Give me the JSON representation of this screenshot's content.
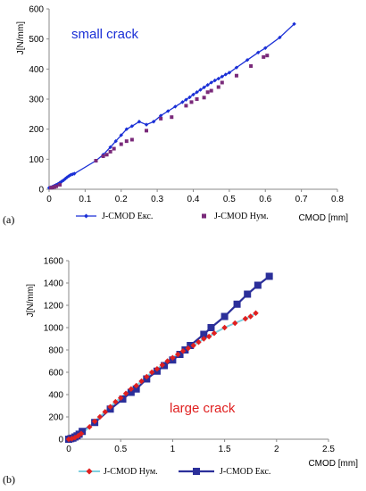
{
  "colors": {
    "exp_a": "#1a2fd6",
    "num_a": "#7a2a7a",
    "num_b_line": "#7fcfe0",
    "num_b_marker": "#e02020",
    "exp_b": "#2b2f9a",
    "annot_a": "#1a2fd6",
    "annot_b": "#e02020"
  },
  "chart_data": [
    {
      "type": "scatter",
      "panel_label": "(a)",
      "title": "",
      "annotation": "small crack",
      "xlabel": "CMOD [mm]",
      "ylabel": "J[N/mm]",
      "xlim": [
        0,
        0.8
      ],
      "ylim": [
        0,
        600
      ],
      "xticks": [
        0,
        0.1,
        0.2,
        0.3,
        0.4,
        0.5,
        0.6,
        0.7,
        0.8
      ],
      "yticks": [
        0,
        100,
        200,
        300,
        400,
        500,
        600
      ],
      "legend": [
        "J-CMOD Екс.",
        "J-CMOD Нум."
      ],
      "series": [
        {
          "name": "J-CMOD Екс.",
          "marker": "diamond",
          "x": [
            0,
            0.005,
            0.01,
            0.015,
            0.02,
            0.025,
            0.03,
            0.035,
            0.04,
            0.045,
            0.05,
            0.055,
            0.06,
            0.065,
            0.07,
            0.13,
            0.15,
            0.17,
            0.185,
            0.2,
            0.215,
            0.23,
            0.25,
            0.27,
            0.29,
            0.31,
            0.33,
            0.35,
            0.37,
            0.38,
            0.39,
            0.4,
            0.41,
            0.42,
            0.43,
            0.44,
            0.45,
            0.46,
            0.47,
            0.48,
            0.49,
            0.5,
            0.52,
            0.55,
            0.58,
            0.6,
            0.64,
            0.68
          ],
          "y": [
            5,
            7,
            9,
            12,
            15,
            18,
            22,
            26,
            30,
            35,
            40,
            44,
            48,
            50,
            52,
            95,
            115,
            140,
            160,
            180,
            200,
            210,
            225,
            215,
            225,
            245,
            260,
            275,
            290,
            298,
            306,
            315,
            323,
            331,
            339,
            347,
            355,
            362,
            368,
            375,
            382,
            388,
            405,
            430,
            455,
            470,
            505,
            550
          ]
        },
        {
          "name": "J-CMOD Нум.",
          "marker": "square",
          "x": [
            0.005,
            0.01,
            0.015,
            0.02,
            0.03,
            0.13,
            0.15,
            0.16,
            0.17,
            0.18,
            0.2,
            0.215,
            0.23,
            0.27,
            0.31,
            0.34,
            0.38,
            0.395,
            0.41,
            0.43,
            0.44,
            0.45,
            0.47,
            0.48,
            0.52,
            0.56,
            0.595,
            0.605
          ],
          "y": [
            5,
            6,
            8,
            10,
            15,
            95,
            110,
            115,
            125,
            135,
            150,
            160,
            165,
            195,
            235,
            240,
            278,
            290,
            300,
            305,
            323,
            328,
            340,
            355,
            378,
            410,
            440,
            445
          ]
        }
      ]
    },
    {
      "type": "line",
      "panel_label": "(b)",
      "title": "",
      "annotation": "large crack",
      "xlabel": "CMOD [mm]",
      "ylabel": "J[N/mm]",
      "xlim": [
        0,
        2.5
      ],
      "ylim": [
        0,
        1600
      ],
      "xticks": [
        0,
        0.5,
        1,
        1.5,
        2,
        2.5
      ],
      "yticks": [
        0,
        200,
        400,
        600,
        800,
        1000,
        1200,
        1400,
        1600
      ],
      "legend": [
        "J-CMOD Нум.",
        "J-CMOD Екс."
      ],
      "series": [
        {
          "name": "J-CMOD Нум.",
          "marker": "diamond",
          "x": [
            0,
            0.03,
            0.06,
            0.09,
            0.12,
            0.2,
            0.25,
            0.3,
            0.35,
            0.4,
            0.45,
            0.5,
            0.55,
            0.6,
            0.65,
            0.7,
            0.75,
            0.8,
            0.85,
            0.9,
            0.95,
            1.0,
            1.05,
            1.1,
            1.15,
            1.2,
            1.25,
            1.3,
            1.35,
            1.4,
            1.5,
            1.6,
            1.7,
            1.75,
            1.8
          ],
          "y": [
            0,
            5,
            15,
            30,
            50,
            110,
            160,
            200,
            245,
            290,
            335,
            370,
            410,
            450,
            480,
            520,
            560,
            600,
            630,
            665,
            700,
            730,
            760,
            790,
            815,
            840,
            870,
            900,
            920,
            950,
            1000,
            1040,
            1080,
            1100,
            1130
          ]
        },
        {
          "name": "J-CMOD Екс.",
          "marker": "square",
          "x": [
            0,
            0.02,
            0.04,
            0.06,
            0.08,
            0.1,
            0.13,
            0.25,
            0.4,
            0.52,
            0.6,
            0.65,
            0.75,
            0.85,
            0.92,
            1.0,
            1.07,
            1.12,
            1.17,
            1.3,
            1.37,
            1.5,
            1.62,
            1.72,
            1.82,
            1.93
          ],
          "y": [
            0,
            5,
            10,
            20,
            30,
            45,
            70,
            150,
            270,
            360,
            420,
            450,
            540,
            610,
            660,
            710,
            760,
            800,
            840,
            940,
            1000,
            1100,
            1210,
            1300,
            1380,
            1460
          ]
        }
      ]
    }
  ]
}
